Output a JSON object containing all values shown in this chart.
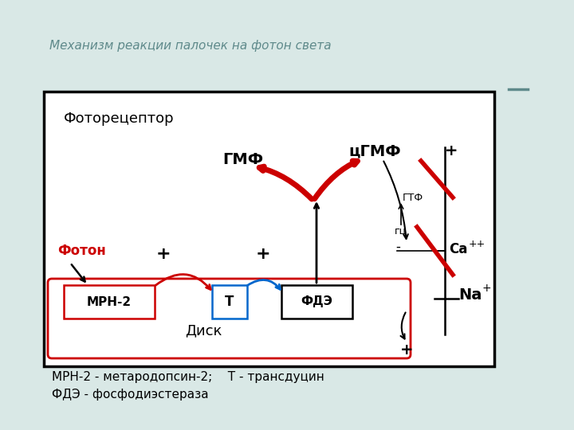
{
  "title": "Механизм реакции палочек на фотон света",
  "title_color": "#5f8a8b",
  "title_fontsize": 11,
  "fig_bg": "#d9e8e6",
  "caption_line1": "МРН-2 - метародопсин-2;    Т - трансдуцин",
  "caption_line2": "ФДЭ - фосфодиэстераза",
  "caption_fontsize": 11,
  "label_fotoreceptor": "Фоторецептор",
  "label_disk": "Диск",
  "label_foton": "Фотон",
  "label_mrn2": "МРН-2",
  "label_t": "Т",
  "label_fde": "ФДЭ",
  "label_gmf": "ГМФ",
  "label_cgmf": "цГМФ",
  "label_gtf": "ГТФ",
  "label_gc": "гц",
  "label_ca": "Ca",
  "label_ca_sup": "++",
  "label_na": "Na",
  "label_na_sup": "+",
  "red_color": "#cc0000",
  "blue_color": "#0066cc",
  "black_color": "#000000"
}
